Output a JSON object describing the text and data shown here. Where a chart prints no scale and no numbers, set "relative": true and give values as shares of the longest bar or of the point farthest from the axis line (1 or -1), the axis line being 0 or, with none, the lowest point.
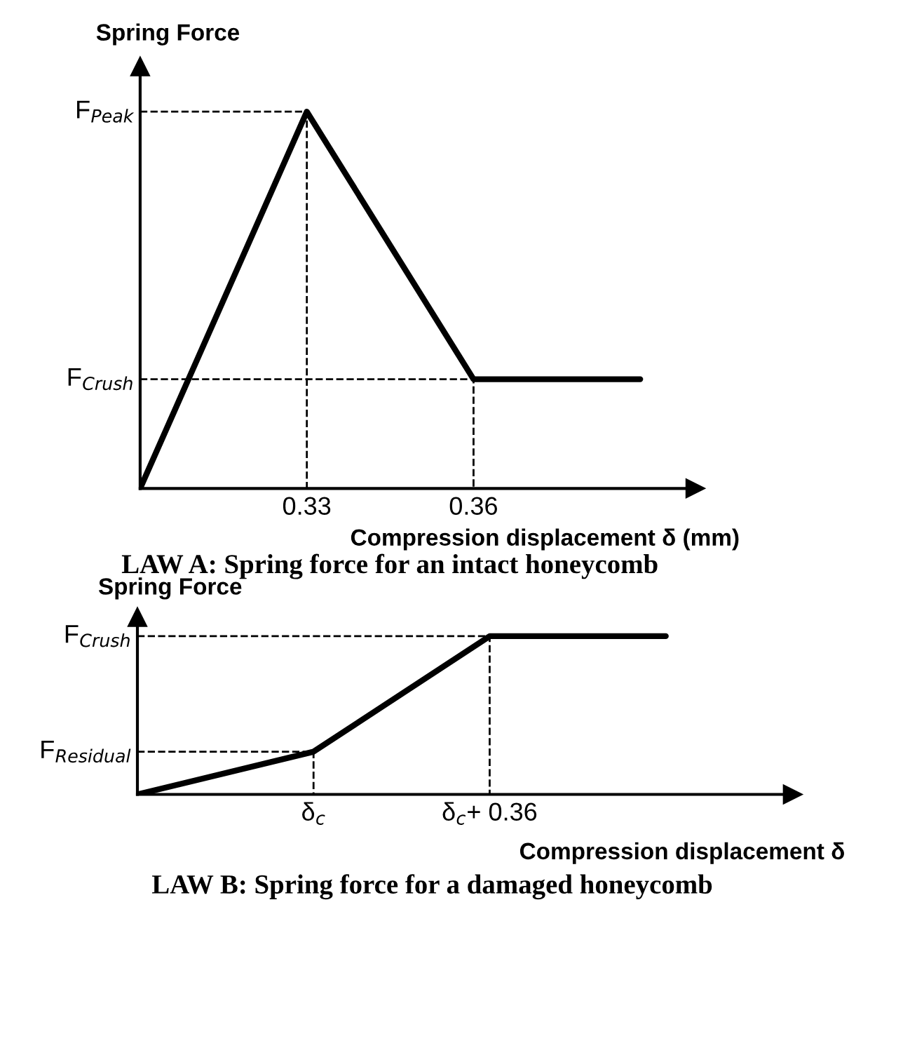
{
  "chart_data": [
    {
      "type": "line",
      "title": "LAW A: Spring force for an intact honeycomb",
      "xlabel": "Compression displacement δ (mm)",
      "ylabel": "Spring Force",
      "relative": true,
      "categories": [
        null,
        "0.33",
        "0.36",
        null
      ],
      "series": [
        {
          "color": "#000000",
          "values": [
            0,
            1,
            0.29,
            0.29
          ]
        }
      ],
      "ref_lines": [
        {
          "axis": "y",
          "value": 1,
          "label": "F$_{Peak}$",
          "line_style": "dashed"
        },
        {
          "axis": "y",
          "value": 0.29,
          "label": "F$_{Crush}$",
          "line_style": "dashed"
        }
      ]
    },
    {
      "type": "line",
      "title": "LAW B: Spring force for a damaged honeycomb",
      "xlabel": "Compression displacement δ",
      "ylabel": "Spring Force",
      "relative": true,
      "categories": [
        null,
        "δ$_{c}$",
        "δ$_{c}$+ 0.36",
        null
      ],
      "series": [
        {
          "color": "#000000",
          "values": [
            0,
            0.27,
            1,
            1
          ]
        }
      ],
      "ref_lines": [
        {
          "axis": "y",
          "value": 1,
          "label": "F$_{Crush}$",
          "line_style": "dashed"
        },
        {
          "axis": "y",
          "value": 0.27,
          "label": "F$_{Residual}$",
          "line_style": "dashed"
        }
      ]
    }
  ]
}
